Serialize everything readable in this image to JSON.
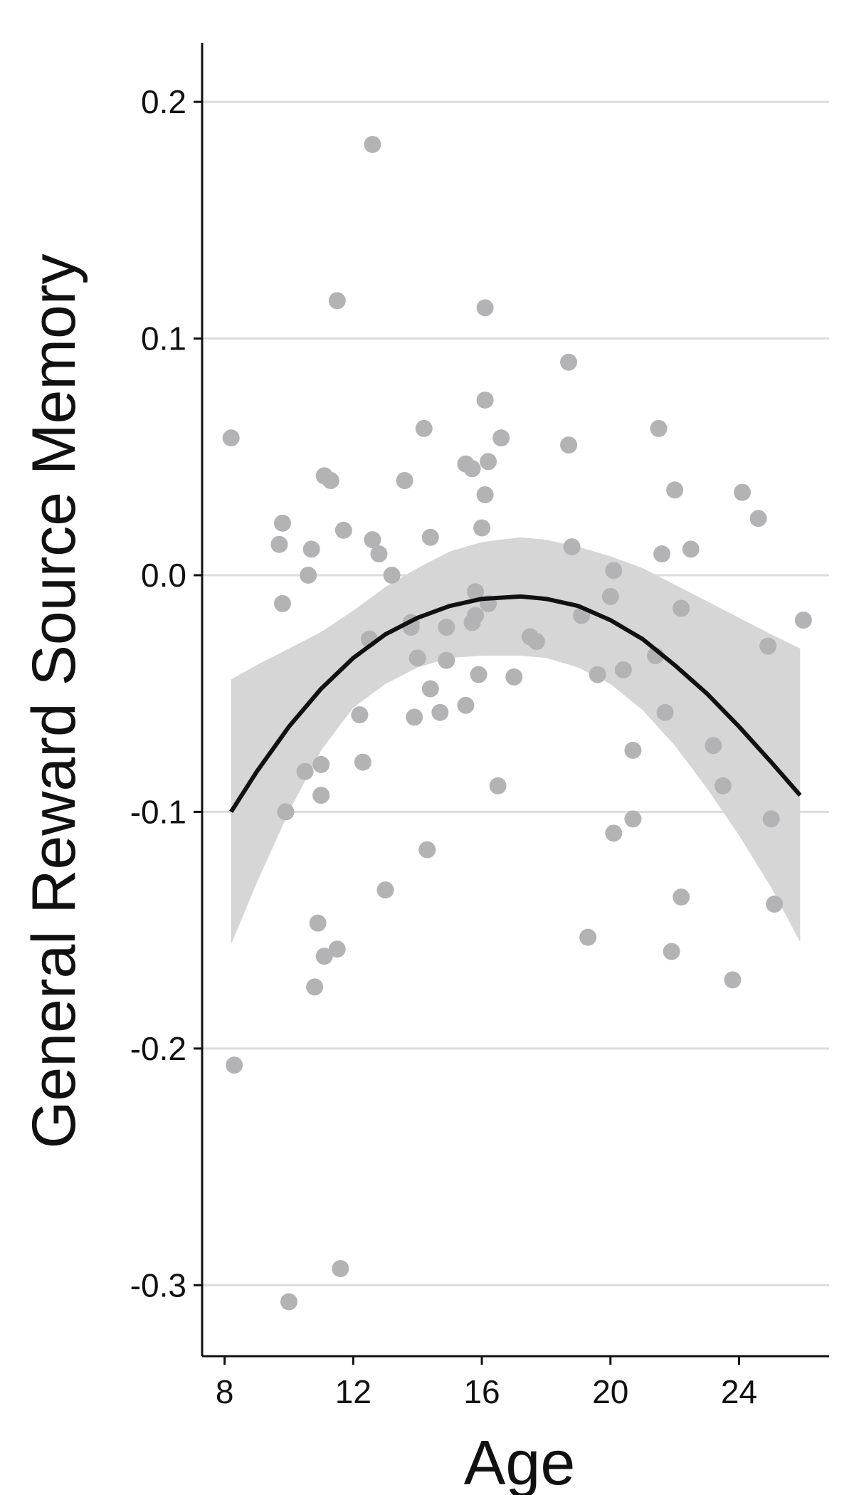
{
  "chart_data": {
    "type": "scatter",
    "title": "",
    "xlabel": "Age",
    "ylabel": "General Reward Source Memory",
    "xlim": [
      7.3,
      26.8
    ],
    "ylim": [
      -0.33,
      0.225
    ],
    "x_ticks": [
      8,
      12,
      16,
      20,
      24
    ],
    "x_tick_labels": [
      "8",
      "12",
      "16",
      "20",
      "24"
    ],
    "y_ticks": [
      0.2,
      0.1,
      0.0,
      -0.1,
      -0.2,
      -0.3
    ],
    "y_tick_labels": [
      "0.2",
      "0.1",
      "0.0",
      "-0.1",
      "-0.2",
      "-0.3"
    ],
    "grid": "horizontal",
    "legend": "none",
    "colors": {
      "points": "#b3b3b6",
      "fit_line": "#111111",
      "ribbon": "#d6d6d6",
      "grid": "#dcdcdc",
      "axis": "#111111"
    },
    "series": [
      {
        "type": "scatter",
        "points": [
          {
            "x": 8.2,
            "y": 0.058
          },
          {
            "x": 8.3,
            "y": -0.207
          },
          {
            "x": 9.7,
            "y": 0.013
          },
          {
            "x": 9.8,
            "y": 0.022
          },
          {
            "x": 9.8,
            "y": -0.012
          },
          {
            "x": 9.9,
            "y": -0.1
          },
          {
            "x": 10.0,
            "y": -0.307
          },
          {
            "x": 10.5,
            "y": -0.083
          },
          {
            "x": 10.6,
            "y": 0.0
          },
          {
            "x": 10.7,
            "y": 0.011
          },
          {
            "x": 10.8,
            "y": -0.174
          },
          {
            "x": 10.9,
            "y": -0.147
          },
          {
            "x": 11.0,
            "y": -0.08
          },
          {
            "x": 11.0,
            "y": -0.093
          },
          {
            "x": 11.1,
            "y": -0.161
          },
          {
            "x": 11.1,
            "y": 0.042
          },
          {
            "x": 11.3,
            "y": 0.04
          },
          {
            "x": 11.5,
            "y": -0.158
          },
          {
            "x": 11.5,
            "y": 0.116
          },
          {
            "x": 11.6,
            "y": -0.293
          },
          {
            "x": 11.7,
            "y": 0.019
          },
          {
            "x": 12.2,
            "y": -0.059
          },
          {
            "x": 12.3,
            "y": -0.079
          },
          {
            "x": 12.5,
            "y": -0.027
          },
          {
            "x": 12.6,
            "y": 0.182
          },
          {
            "x": 12.6,
            "y": 0.015
          },
          {
            "x": 12.8,
            "y": 0.009
          },
          {
            "x": 13.0,
            "y": -0.133
          },
          {
            "x": 13.2,
            "y": 0.0
          },
          {
            "x": 13.6,
            "y": 0.04
          },
          {
            "x": 13.8,
            "y": -0.02
          },
          {
            "x": 13.8,
            "y": -0.022
          },
          {
            "x": 13.9,
            "y": -0.06
          },
          {
            "x": 14.0,
            "y": -0.035
          },
          {
            "x": 14.2,
            "y": 0.062
          },
          {
            "x": 14.3,
            "y": -0.116
          },
          {
            "x": 14.4,
            "y": 0.016
          },
          {
            "x": 14.4,
            "y": -0.048
          },
          {
            "x": 14.7,
            "y": -0.058
          },
          {
            "x": 14.9,
            "y": -0.036
          },
          {
            "x": 14.9,
            "y": -0.022
          },
          {
            "x": 15.5,
            "y": -0.055
          },
          {
            "x": 15.5,
            "y": 0.047
          },
          {
            "x": 15.7,
            "y": -0.02
          },
          {
            "x": 15.7,
            "y": 0.045
          },
          {
            "x": 15.8,
            "y": -0.017
          },
          {
            "x": 15.8,
            "y": -0.007
          },
          {
            "x": 15.9,
            "y": -0.042
          },
          {
            "x": 16.0,
            "y": 0.02
          },
          {
            "x": 16.1,
            "y": 0.113
          },
          {
            "x": 16.1,
            "y": 0.074
          },
          {
            "x": 16.1,
            "y": 0.034
          },
          {
            "x": 16.2,
            "y": -0.012
          },
          {
            "x": 16.2,
            "y": 0.048
          },
          {
            "x": 16.5,
            "y": -0.089
          },
          {
            "x": 16.6,
            "y": 0.058
          },
          {
            "x": 17.0,
            "y": -0.043
          },
          {
            "x": 17.5,
            "y": -0.026
          },
          {
            "x": 17.7,
            "y": -0.028
          },
          {
            "x": 18.7,
            "y": 0.09
          },
          {
            "x": 18.7,
            "y": 0.055
          },
          {
            "x": 18.8,
            "y": 0.012
          },
          {
            "x": 19.1,
            "y": -0.017
          },
          {
            "x": 19.3,
            "y": -0.153
          },
          {
            "x": 19.6,
            "y": -0.042
          },
          {
            "x": 20.0,
            "y": -0.009
          },
          {
            "x": 20.1,
            "y": 0.002
          },
          {
            "x": 20.1,
            "y": -0.109
          },
          {
            "x": 20.4,
            "y": -0.04
          },
          {
            "x": 20.7,
            "y": -0.074
          },
          {
            "x": 20.7,
            "y": -0.103
          },
          {
            "x": 21.4,
            "y": -0.034
          },
          {
            "x": 21.5,
            "y": 0.062
          },
          {
            "x": 21.6,
            "y": 0.009
          },
          {
            "x": 21.7,
            "y": -0.058
          },
          {
            "x": 21.9,
            "y": -0.159
          },
          {
            "x": 22.0,
            "y": 0.036
          },
          {
            "x": 22.2,
            "y": -0.014
          },
          {
            "x": 22.2,
            "y": -0.136
          },
          {
            "x": 22.5,
            "y": 0.011
          },
          {
            "x": 23.2,
            "y": -0.072
          },
          {
            "x": 23.5,
            "y": -0.089
          },
          {
            "x": 23.8,
            "y": -0.171
          },
          {
            "x": 24.1,
            "y": 0.035
          },
          {
            "x": 24.6,
            "y": 0.024
          },
          {
            "x": 24.9,
            "y": -0.03
          },
          {
            "x": 25.0,
            "y": -0.103
          },
          {
            "x": 25.1,
            "y": -0.139
          },
          {
            "x": 26.0,
            "y": -0.019
          }
        ]
      },
      {
        "type": "line",
        "points": [
          {
            "x": 8.2,
            "y": -0.1
          },
          {
            "x": 9.0,
            "y": -0.083
          },
          {
            "x": 10.0,
            "y": -0.064
          },
          {
            "x": 11.0,
            "y": -0.048
          },
          {
            "x": 12.0,
            "y": -0.035
          },
          {
            "x": 13.0,
            "y": -0.025
          },
          {
            "x": 14.0,
            "y": -0.018
          },
          {
            "x": 15.0,
            "y": -0.013
          },
          {
            "x": 16.0,
            "y": -0.01
          },
          {
            "x": 17.2,
            "y": -0.009
          },
          {
            "x": 18.0,
            "y": -0.01
          },
          {
            "x": 19.0,
            "y": -0.013
          },
          {
            "x": 20.0,
            "y": -0.019
          },
          {
            "x": 21.0,
            "y": -0.027
          },
          {
            "x": 22.0,
            "y": -0.038
          },
          {
            "x": 23.0,
            "y": -0.05
          },
          {
            "x": 24.0,
            "y": -0.064
          },
          {
            "x": 25.0,
            "y": -0.079
          },
          {
            "x": 25.9,
            "y": -0.093
          }
        ]
      },
      {
        "type": "area",
        "upper": [
          {
            "x": 8.2,
            "y": -0.044
          },
          {
            "x": 9.0,
            "y": -0.038
          },
          {
            "x": 10.0,
            "y": -0.031
          },
          {
            "x": 11.0,
            "y": -0.024
          },
          {
            "x": 12.0,
            "y": -0.015
          },
          {
            "x": 13.0,
            "y": -0.005
          },
          {
            "x": 14.0,
            "y": 0.003
          },
          {
            "x": 15.0,
            "y": 0.01
          },
          {
            "x": 16.0,
            "y": 0.014
          },
          {
            "x": 17.2,
            "y": 0.016
          },
          {
            "x": 18.0,
            "y": 0.015
          },
          {
            "x": 19.0,
            "y": 0.012
          },
          {
            "x": 20.0,
            "y": 0.008
          },
          {
            "x": 21.0,
            "y": 0.003
          },
          {
            "x": 22.0,
            "y": -0.004
          },
          {
            "x": 23.0,
            "y": -0.011
          },
          {
            "x": 24.0,
            "y": -0.018
          },
          {
            "x": 25.0,
            "y": -0.025
          },
          {
            "x": 25.9,
            "y": -0.031
          }
        ],
        "lower": [
          {
            "x": 8.2,
            "y": -0.156
          },
          {
            "x": 9.0,
            "y": -0.13
          },
          {
            "x": 10.0,
            "y": -0.1
          },
          {
            "x": 11.0,
            "y": -0.074
          },
          {
            "x": 12.0,
            "y": -0.056
          },
          {
            "x": 13.0,
            "y": -0.046
          },
          {
            "x": 14.0,
            "y": -0.039
          },
          {
            "x": 15.0,
            "y": -0.035
          },
          {
            "x": 16.0,
            "y": -0.034
          },
          {
            "x": 17.2,
            "y": -0.034
          },
          {
            "x": 18.0,
            "y": -0.035
          },
          {
            "x": 19.0,
            "y": -0.039
          },
          {
            "x": 20.0,
            "y": -0.046
          },
          {
            "x": 21.0,
            "y": -0.057
          },
          {
            "x": 22.0,
            "y": -0.072
          },
          {
            "x": 23.0,
            "y": -0.09
          },
          {
            "x": 24.0,
            "y": -0.11
          },
          {
            "x": 25.0,
            "y": -0.132
          },
          {
            "x": 25.9,
            "y": -0.155
          }
        ]
      }
    ]
  }
}
